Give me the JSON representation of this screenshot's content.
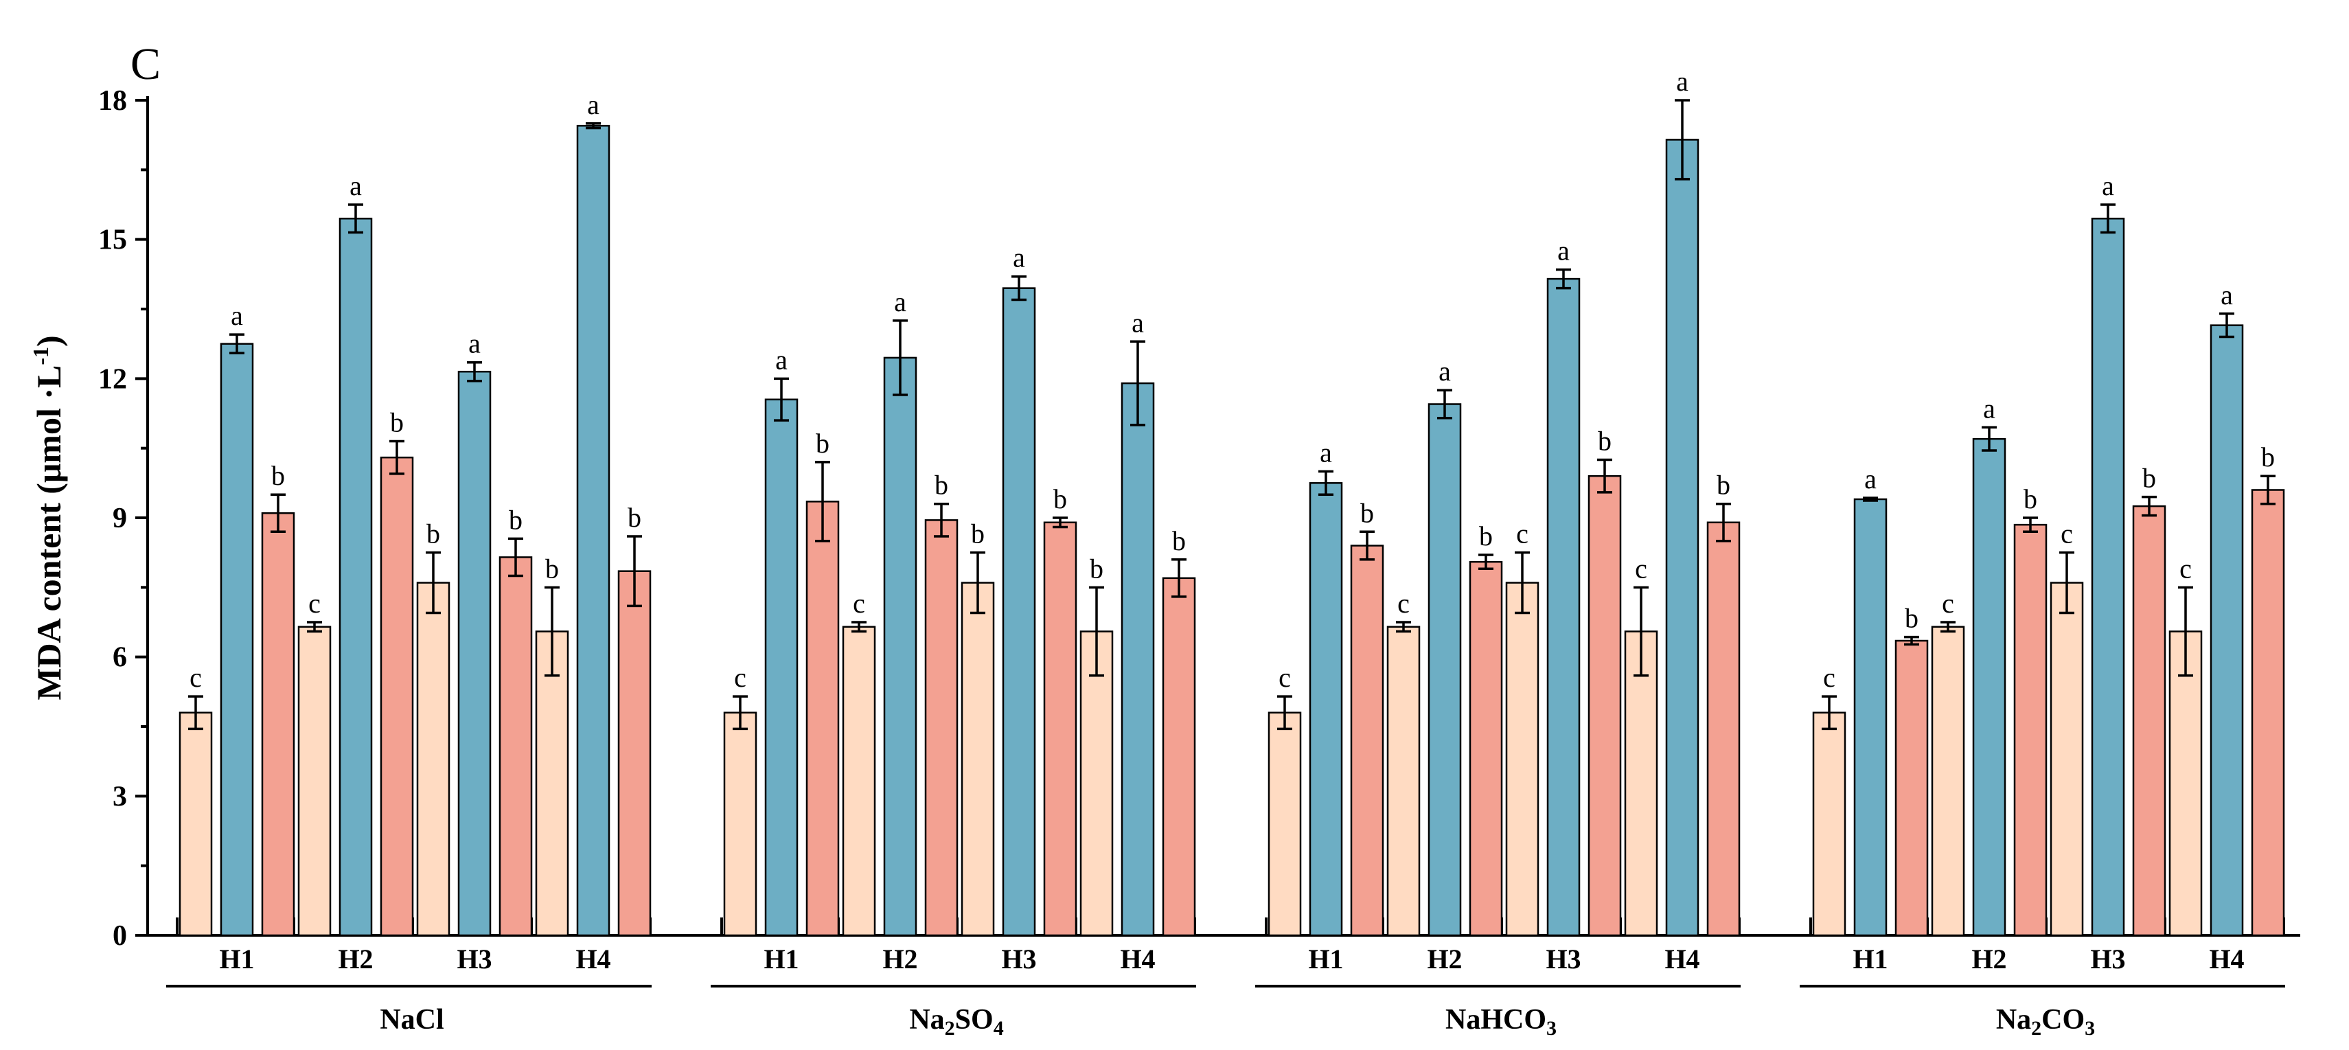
{
  "chart_data": {
    "type": "bar",
    "panel_label": "C",
    "ylabel": {
      "main": "MDA content (μmol ·L",
      "sup": "-1",
      "close": ")"
    },
    "ylim": [
      0,
      18
    ],
    "yticks": [
      0,
      3,
      6,
      9,
      12,
      15,
      18
    ],
    "colors": {
      "series1": "#FFDBC2",
      "series2": "#6DAEC4",
      "series3": "#F3A192"
    },
    "groups": [
      {
        "name": "NaCl",
        "label_parts": [
          {
            "t": "NaCl",
            "sub": false
          }
        ],
        "subgroups": [
          {
            "label": "H1",
            "bars": [
              {
                "value": 4.8,
                "err": 0.35,
                "sig": "c"
              },
              {
                "value": 12.75,
                "err": 0.2,
                "sig": "a"
              },
              {
                "value": 9.1,
                "err": 0.4,
                "sig": "b"
              }
            ]
          },
          {
            "label": "H2",
            "bars": [
              {
                "value": 6.65,
                "err": 0.1,
                "sig": "c"
              },
              {
                "value": 15.45,
                "err": 0.3,
                "sig": "a"
              },
              {
                "value": 10.3,
                "err": 0.35,
                "sig": "b"
              }
            ]
          },
          {
            "label": "H3",
            "bars": [
              {
                "value": 7.6,
                "err": 0.65,
                "sig": "b"
              },
              {
                "value": 12.15,
                "err": 0.2,
                "sig": "a"
              },
              {
                "value": 8.15,
                "err": 0.4,
                "sig": "b"
              }
            ]
          },
          {
            "label": "H4",
            "bars": [
              {
                "value": 6.55,
                "err": 0.95,
                "sig": "b"
              },
              {
                "value": 17.45,
                "err": 0.05,
                "sig": "a"
              },
              {
                "value": 7.85,
                "err": 0.75,
                "sig": "b"
              }
            ]
          }
        ]
      },
      {
        "name": "Na2SO4",
        "label_parts": [
          {
            "t": "Na",
            "sub": false
          },
          {
            "t": "2",
            "sub": true
          },
          {
            "t": "SO",
            "sub": false
          },
          {
            "t": "4",
            "sub": true
          }
        ],
        "subgroups": [
          {
            "label": "H1",
            "bars": [
              {
                "value": 4.8,
                "err": 0.35,
                "sig": "c"
              },
              {
                "value": 11.55,
                "err": 0.45,
                "sig": "a"
              },
              {
                "value": 9.35,
                "err": 0.85,
                "sig": "b"
              }
            ]
          },
          {
            "label": "H2",
            "bars": [
              {
                "value": 6.65,
                "err": 0.1,
                "sig": "c"
              },
              {
                "value": 12.45,
                "err": 0.8,
                "sig": "a"
              },
              {
                "value": 8.95,
                "err": 0.35,
                "sig": "b"
              }
            ]
          },
          {
            "label": "H3",
            "bars": [
              {
                "value": 7.6,
                "err": 0.65,
                "sig": "b"
              },
              {
                "value": 13.95,
                "err": 0.25,
                "sig": "a"
              },
              {
                "value": 8.9,
                "err": 0.1,
                "sig": "b"
              }
            ]
          },
          {
            "label": "H4",
            "bars": [
              {
                "value": 6.55,
                "err": 0.95,
                "sig": "b"
              },
              {
                "value": 11.9,
                "err": 0.9,
                "sig": "a"
              },
              {
                "value": 7.7,
                "err": 0.4,
                "sig": "b"
              }
            ]
          }
        ]
      },
      {
        "name": "NaHCO3",
        "label_parts": [
          {
            "t": "NaHCO",
            "sub": false
          },
          {
            "t": "3",
            "sub": true
          }
        ],
        "subgroups": [
          {
            "label": "H1",
            "bars": [
              {
                "value": 4.8,
                "err": 0.35,
                "sig": "c"
              },
              {
                "value": 9.75,
                "err": 0.25,
                "sig": "a"
              },
              {
                "value": 8.4,
                "err": 0.3,
                "sig": "b"
              }
            ]
          },
          {
            "label": "H2",
            "bars": [
              {
                "value": 6.65,
                "err": 0.1,
                "sig": "c"
              },
              {
                "value": 11.45,
                "err": 0.3,
                "sig": "a"
              },
              {
                "value": 8.05,
                "err": 0.15,
                "sig": "b"
              }
            ]
          },
          {
            "label": "H3",
            "bars": [
              {
                "value": 7.6,
                "err": 0.65,
                "sig": "c"
              },
              {
                "value": 14.15,
                "err": 0.2,
                "sig": "a"
              },
              {
                "value": 9.9,
                "err": 0.35,
                "sig": "b"
              }
            ]
          },
          {
            "label": "H4",
            "bars": [
              {
                "value": 6.55,
                "err": 0.95,
                "sig": "c"
              },
              {
                "value": 17.15,
                "err": 0.85,
                "sig": "a"
              },
              {
                "value": 8.9,
                "err": 0.4,
                "sig": "b"
              }
            ]
          }
        ]
      },
      {
        "name": "Na2CO3",
        "label_parts": [
          {
            "t": "Na",
            "sub": false
          },
          {
            "t": "2",
            "sub": true
          },
          {
            "t": "CO",
            "sub": false
          },
          {
            "t": "3",
            "sub": true
          }
        ],
        "subgroups": [
          {
            "label": "H1",
            "bars": [
              {
                "value": 4.8,
                "err": 0.35,
                "sig": "c"
              },
              {
                "value": 9.4,
                "err": 0.03,
                "sig": "a"
              },
              {
                "value": 6.35,
                "err": 0.08,
                "sig": "b"
              }
            ]
          },
          {
            "label": "H2",
            "bars": [
              {
                "value": 6.65,
                "err": 0.1,
                "sig": "c"
              },
              {
                "value": 10.7,
                "err": 0.25,
                "sig": "a"
              },
              {
                "value": 8.85,
                "err": 0.15,
                "sig": "b"
              }
            ]
          },
          {
            "label": "H3",
            "bars": [
              {
                "value": 7.6,
                "err": 0.65,
                "sig": "c"
              },
              {
                "value": 15.45,
                "err": 0.3,
                "sig": "a"
              },
              {
                "value": 9.25,
                "err": 0.2,
                "sig": "b"
              }
            ]
          },
          {
            "label": "H4",
            "bars": [
              {
                "value": 6.55,
                "err": 0.95,
                "sig": "c"
              },
              {
                "value": 13.15,
                "err": 0.25,
                "sig": "a"
              },
              {
                "value": 9.6,
                "err": 0.3,
                "sig": "b"
              }
            ]
          }
        ]
      }
    ]
  }
}
